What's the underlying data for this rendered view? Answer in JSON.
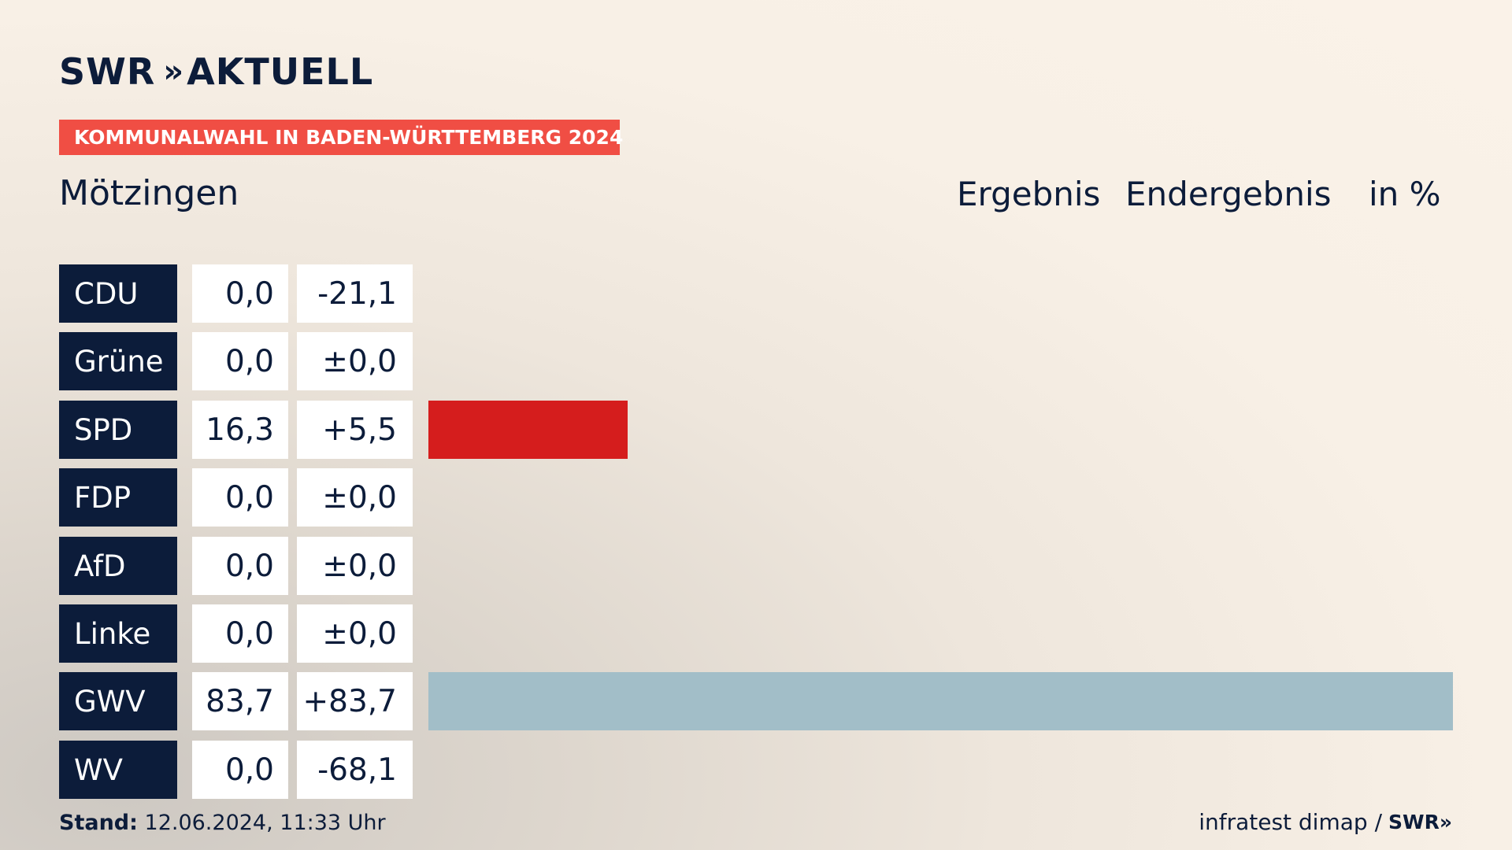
{
  "header": {
    "logo_text": "SWR",
    "logo_arrows": "»",
    "logo_suffix": "AKTUELL",
    "badge": "KOMMUNALWAHL IN BADEN-WÜRTTEMBERG 2024",
    "place": "Mötzingen",
    "col_result": "Ergebnis",
    "col_status": "Endergebnis",
    "col_unit": "in %"
  },
  "footer": {
    "stand_label": "Stand:",
    "stand_value": "12.06.2024, 11:33 Uhr",
    "source": "infratest dimap /",
    "source_logo": "SWR»"
  },
  "chart_data": {
    "type": "bar",
    "orientation": "horizontal",
    "title": "Mötzingen",
    "unit": "in %",
    "xlim": [
      0,
      83.7
    ],
    "categories": [
      "CDU",
      "Grüne",
      "SPD",
      "FDP",
      "AfD",
      "Linke",
      "GWV",
      "WV"
    ],
    "values": [
      0.0,
      0.0,
      16.3,
      0.0,
      0.0,
      0.0,
      83.7,
      0.0
    ],
    "value_labels": [
      "0,0",
      "0,0",
      "16,3",
      "0,0",
      "0,0",
      "0,0",
      "83,7",
      "0,0"
    ],
    "diff_labels": [
      "-21,1",
      "±0,0",
      "+5,5",
      "±0,0",
      "±0,0",
      "±0,0",
      "+83,7",
      "-68,1"
    ],
    "colors": [
      "#0c1c3a",
      "#3fa535",
      "#d51d1d",
      "#ffd600",
      "#009ee0",
      "#b1005d",
      "#a2bec8",
      "#a2bec8"
    ]
  }
}
